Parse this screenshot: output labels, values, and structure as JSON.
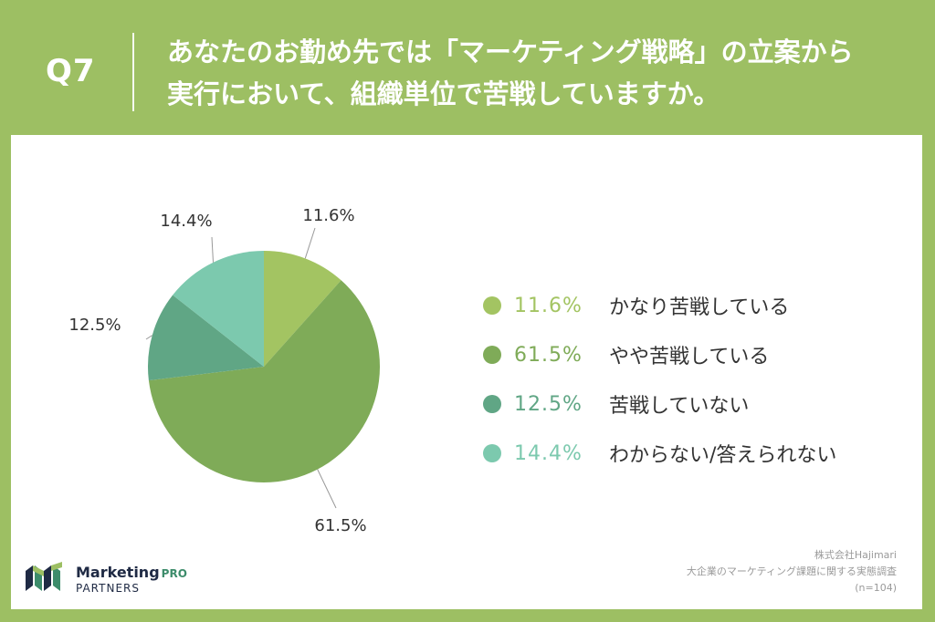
{
  "header": {
    "q_label": "Q7",
    "question_line1": "あなたのお勤め先では「マーケティング戦略」の立案から",
    "question_line2": "実行において、組織単位で苦戦していますか。"
  },
  "chart_data": {
    "type": "pie",
    "title": "",
    "start_angle_deg": 0,
    "direction": "clockwise",
    "slices": [
      {
        "label": "かなり苦戦している",
        "value": 11.6,
        "display": "11.6%",
        "color": "#a3c462"
      },
      {
        "label": "やや苦戦している",
        "value": 61.5,
        "display": "61.5%",
        "color": "#7fab58"
      },
      {
        "label": "苦戦していない",
        "value": 12.5,
        "display": "12.5%",
        "color": "#60a685"
      },
      {
        "label": "わからない/答えられない",
        "value": 14.4,
        "display": "14.4%",
        "color": "#7cc9ae"
      }
    ],
    "legend_position": "right",
    "leader_color": "#999999"
  },
  "logo": {
    "name": "Marketing",
    "name_suffix": "PRO",
    "sub": "PARTNERS",
    "colors": [
      "#1f2a44",
      "#3d8c6b"
    ]
  },
  "source": {
    "line1": "株式会社Hajimari",
    "line2": "大企業のマーケティング課題に関する実態調査",
    "line3": "(n=104)"
  }
}
